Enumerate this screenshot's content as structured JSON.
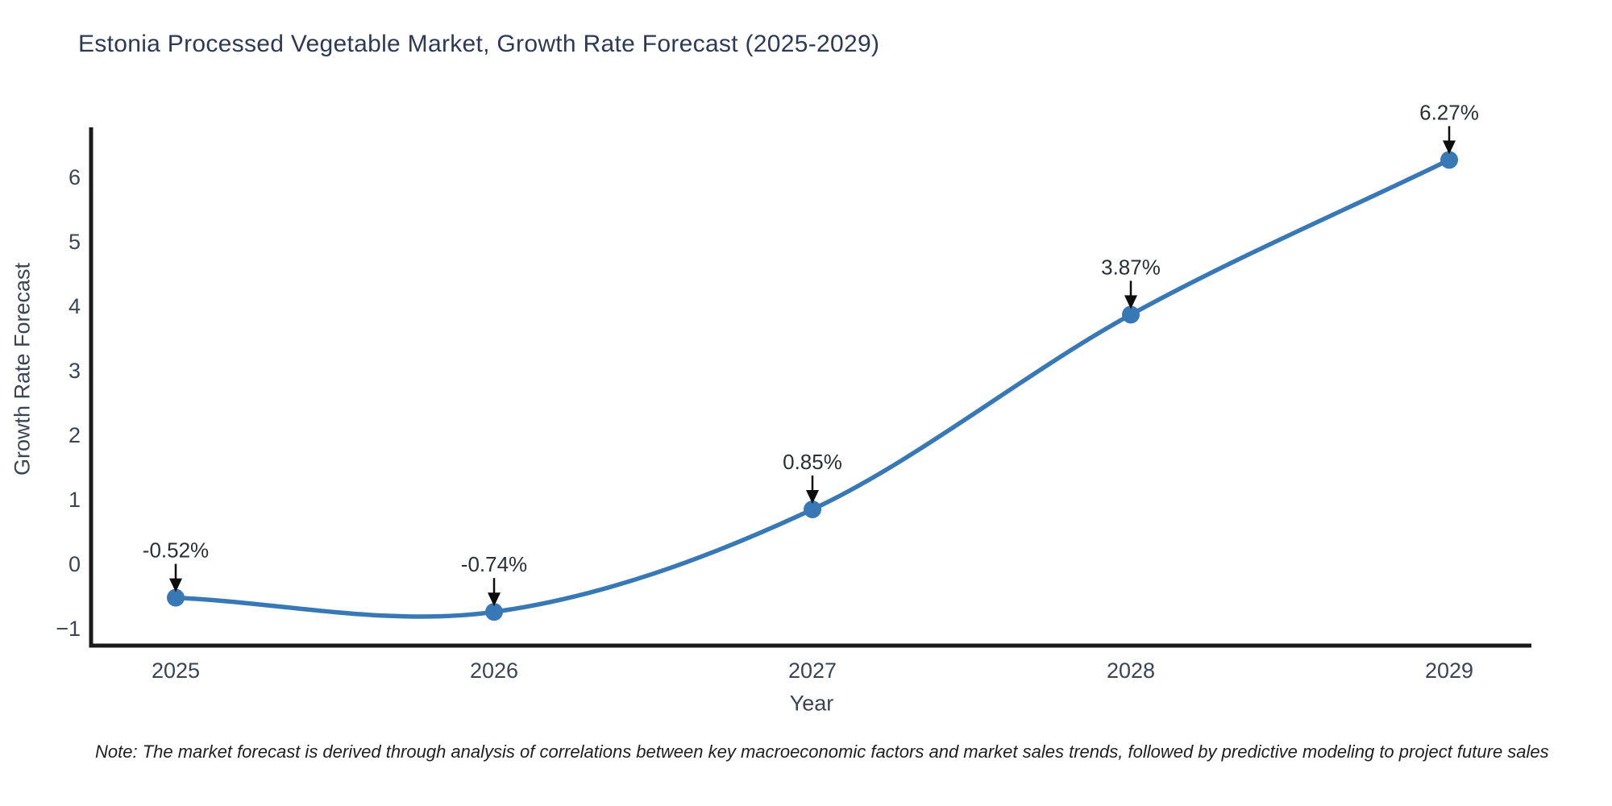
{
  "note": "Note: The market forecast is derived through analysis of correlations between key macroeconomic factors and market sales trends, followed by predictive modeling to project future sales",
  "chart_data": {
    "type": "line",
    "title": "Estonia Processed Vegetable Market, Growth Rate Forecast (2025-2029)",
    "xlabel": "Year",
    "ylabel": "Growth Rate Forecast",
    "categories": [
      "2025",
      "2026",
      "2027",
      "2028",
      "2029"
    ],
    "values": [
      -0.52,
      -0.74,
      0.85,
      3.87,
      6.27
    ],
    "annotations": [
      "-0.52%",
      "-0.74%",
      "0.85%",
      "3.87%",
      "6.27%"
    ],
    "yticks": [
      -1,
      0,
      1,
      2,
      3,
      4,
      5,
      6
    ],
    "ylim": [
      -1.3,
      6.8
    ],
    "grid": false,
    "legend": false,
    "curve": "spline",
    "line_color": "#3879b5",
    "marker_color": "#3879b5",
    "axis_color": "#1a1a1a",
    "tick_color": "#3c4454",
    "annotation_color": "#2a2f36",
    "arrow_color": "#0d0d0d"
  }
}
